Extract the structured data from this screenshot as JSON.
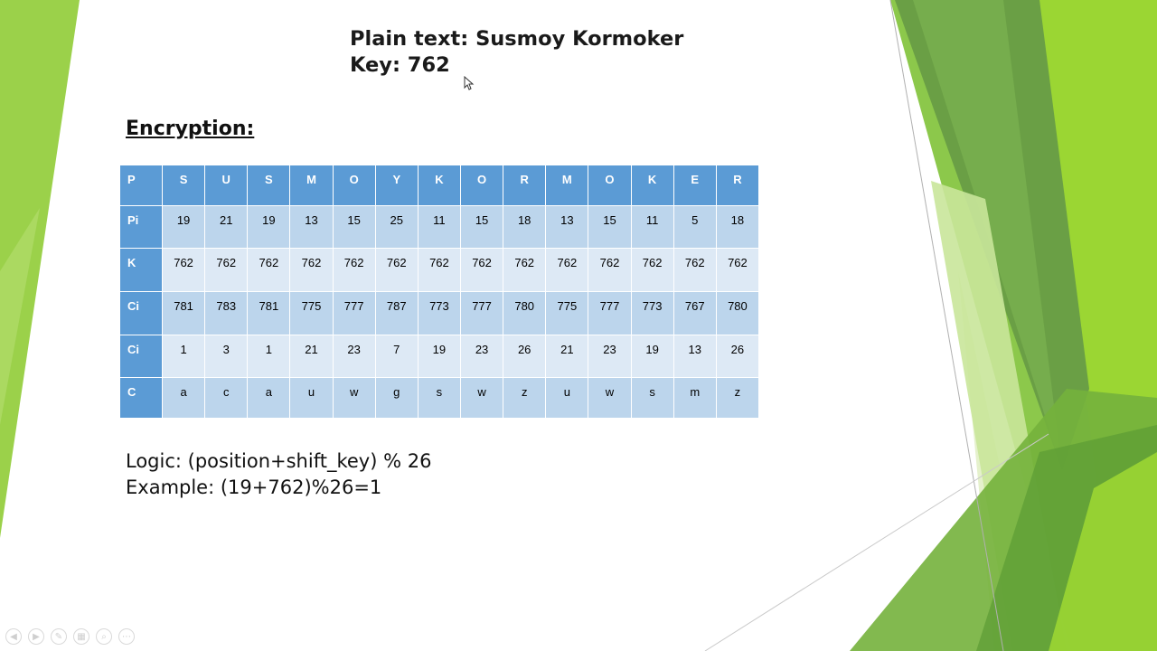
{
  "slide": {
    "plaintext_line": "Plain text: Susmoy Kormoker",
    "key_line": "Key: 762",
    "section_heading": "Encryption:",
    "logic_line": "Logic: (position+shift_key) % 26",
    "example_line": "Example: (19+762)%26=1"
  },
  "table": {
    "rows": [
      {
        "label": "P",
        "cells": [
          "S",
          "U",
          "S",
          "M",
          "O",
          "Y",
          "K",
          "O",
          "R",
          "M",
          "O",
          "K",
          "E",
          "R"
        ]
      },
      {
        "label": "Pi",
        "cells": [
          "19",
          "21",
          "19",
          "13",
          "15",
          "25",
          "11",
          "15",
          "18",
          "13",
          "15",
          "11",
          "5",
          "18"
        ]
      },
      {
        "label": "K",
        "cells": [
          "762",
          "762",
          "762",
          "762",
          "762",
          "762",
          "762",
          "762",
          "762",
          "762",
          "762",
          "762",
          "762",
          "762"
        ]
      },
      {
        "label": "Ci",
        "cells": [
          "781",
          "783",
          "781",
          "775",
          "777",
          "787",
          "773",
          "777",
          "780",
          "775",
          "777",
          "773",
          "767",
          "780"
        ]
      },
      {
        "label": "Ci",
        "cells": [
          "1",
          "3",
          "1",
          "21",
          "23",
          "7",
          "19",
          "23",
          "26",
          "21",
          "23",
          "19",
          "13",
          "26"
        ]
      },
      {
        "label": "C",
        "cells": [
          "a",
          "c",
          "a",
          "u",
          "w",
          "g",
          "s",
          "w",
          "z",
          "u",
          "w",
          "s",
          "m",
          "z"
        ]
      }
    ]
  },
  "toolbar": {
    "icons": [
      "previous-icon",
      "next-icon",
      "pen-icon",
      "slides-icon",
      "zoom-icon",
      "more-icon"
    ],
    "glyphs": [
      "◀",
      "▶",
      "✎",
      "▦",
      "⌕",
      "⋯"
    ]
  },
  "colors": {
    "header_blue": "#5b9bd5",
    "row_dark": "#bcd5ec",
    "row_light": "#dde9f5",
    "green_light": "#92d050",
    "green_dark": "#5e9e35"
  }
}
